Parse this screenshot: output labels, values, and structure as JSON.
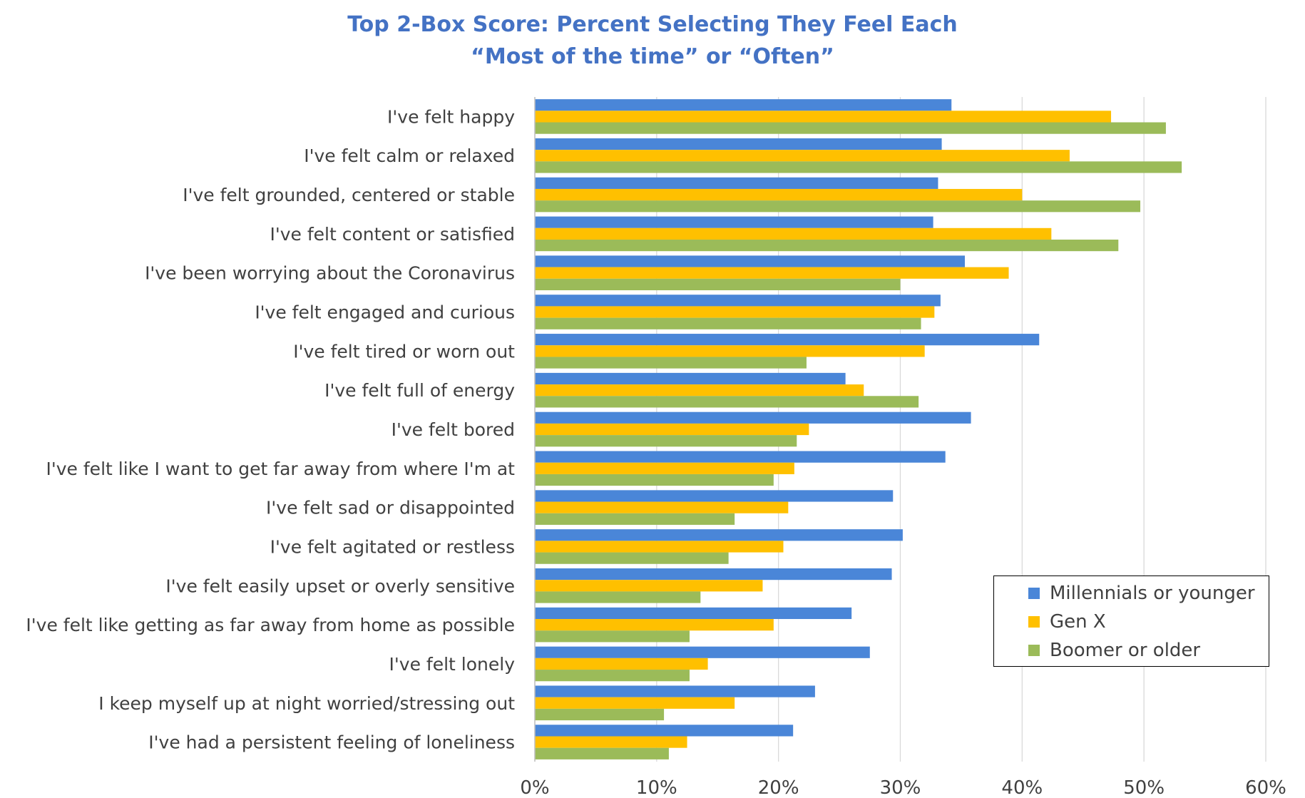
{
  "chart_data": {
    "type": "bar",
    "orientation": "horizontal",
    "title": "Top 2-Box Score: Percent Selecting They Feel Each",
    "subtitle": "“Most of the time” or “Often”",
    "categories": [
      "I've felt happy",
      "I've felt calm or relaxed",
      "I've felt grounded, centered or stable",
      "I've felt content or satisfied",
      "I've been worrying about the Coronavirus",
      "I've felt engaged and curious",
      "I've felt tired or worn out",
      "I've felt full of energy",
      "I've felt bored",
      "I've felt like I want to get far away from where I'm at",
      "I've felt sad or disappointed",
      "I've felt agitated or restless",
      "I've felt easily upset or overly sensitive",
      "I've felt like getting as far away from home as possible",
      "I've felt lonely",
      "I keep myself up at night worried/stressing out",
      "I've had a persistent feeling of loneliness"
    ],
    "series": [
      {
        "name": "Millennials or younger",
        "color": "#4a86d8",
        "values": [
          34.2,
          33.4,
          33.1,
          32.7,
          35.3,
          33.3,
          41.4,
          25.5,
          35.8,
          33.7,
          29.4,
          30.2,
          29.3,
          26.0,
          27.5,
          23.0,
          21.2
        ]
      },
      {
        "name": "Gen X",
        "color": "#ffc000",
        "values": [
          47.3,
          43.9,
          40.0,
          42.4,
          38.9,
          32.8,
          32.0,
          27.0,
          22.5,
          21.3,
          20.8,
          20.4,
          18.7,
          19.6,
          14.2,
          16.4,
          12.5
        ]
      },
      {
        "name": "Boomer or older",
        "color": "#9bbb59",
        "values": [
          51.8,
          53.1,
          49.7,
          47.9,
          30.0,
          31.7,
          22.3,
          31.5,
          21.5,
          19.6,
          16.4,
          15.9,
          13.6,
          12.7,
          12.7,
          10.6,
          11.0
        ]
      }
    ],
    "x_ticks": [
      "0%",
      "10%",
      "20%",
      "30%",
      "40%",
      "50%",
      "60%"
    ],
    "xlim": [
      0,
      60
    ],
    "grid": "vertical",
    "legend_position": "bottom-right"
  }
}
